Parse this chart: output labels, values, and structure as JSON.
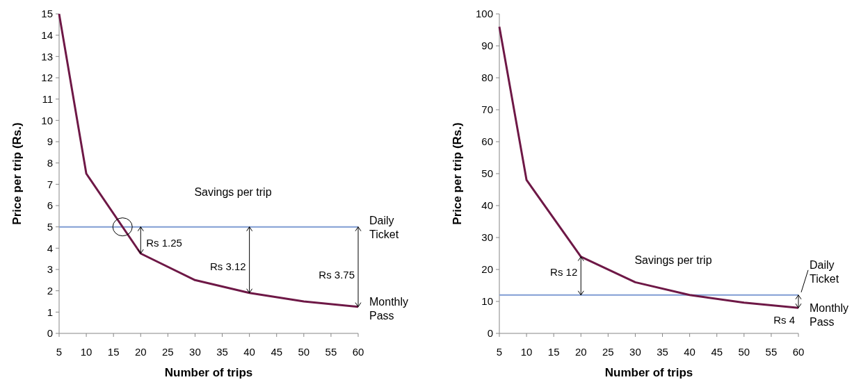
{
  "chart_data": [
    {
      "type": "line",
      "xlabel": "Number of trips",
      "ylabel": "Price per trip (Rs.)",
      "x": [
        5,
        10,
        20,
        30,
        40,
        50,
        60
      ],
      "xlim": [
        5,
        60
      ],
      "xticks": [
        5,
        10,
        15,
        20,
        25,
        30,
        35,
        40,
        45,
        50,
        55,
        60
      ],
      "ylim": [
        0,
        15
      ],
      "yticks": [
        0,
        1,
        2,
        3,
        4,
        5,
        6,
        7,
        8,
        9,
        10,
        11,
        12,
        13,
        14,
        15
      ],
      "grid": false,
      "marker": "none",
      "series": [
        {
          "name": "Monthly Pass",
          "color": "#6e1846",
          "values": [
            15,
            7.5,
            3.75,
            2.5,
            1.9,
            1.5,
            1.25
          ]
        }
      ],
      "ref_lines": [
        {
          "axis": "y",
          "value": 5,
          "label": "Daily Ticket",
          "color": "#7f9cd3"
        }
      ],
      "annotations": [
        "Savings per trip",
        {
          "text": "Rs 1.25",
          "x": 20,
          "y": 3.75
        },
        {
          "text": "Rs 3.12",
          "x": 40,
          "y": 1.9
        },
        {
          "text": "Rs 3.75",
          "x": 60,
          "y": 1.25
        }
      ]
    },
    {
      "type": "line",
      "xlabel": "Number of trips",
      "ylabel": "Price per trip (Rs.)",
      "x": [
        5,
        10,
        20,
        30,
        40,
        50,
        60
      ],
      "xlim": [
        5,
        60
      ],
      "xticks": [
        5,
        10,
        15,
        20,
        25,
        30,
        35,
        40,
        45,
        50,
        55,
        60
      ],
      "ylim": [
        0,
        100
      ],
      "yticks": [
        0,
        10,
        20,
        30,
        40,
        50,
        60,
        70,
        80,
        90,
        100
      ],
      "grid": false,
      "marker": "none",
      "series": [
        {
          "name": "Monthly Pass",
          "color": "#6e1846",
          "values": [
            96,
            48,
            24,
            16,
            12,
            9.6,
            8
          ]
        }
      ],
      "ref_lines": [
        {
          "axis": "y",
          "value": 12,
          "label": "Daily Ticket",
          "color": "#7f9cd3"
        }
      ],
      "annotations": [
        "Savings per trip",
        {
          "text": "Rs 12",
          "x": 20,
          "y": 24
        },
        {
          "text": "Rs 4",
          "x": 60,
          "y": 8
        }
      ]
    }
  ]
}
